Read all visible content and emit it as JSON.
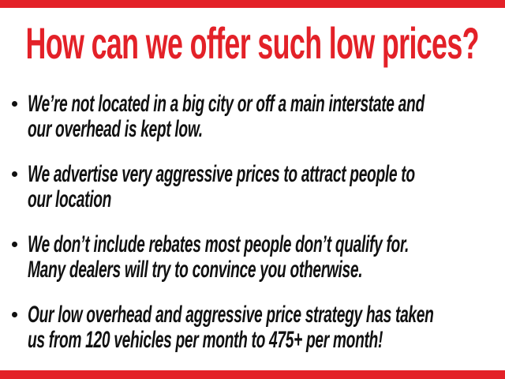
{
  "colors": {
    "accent": "#e32128",
    "text": "#111111",
    "background": "#ffffff"
  },
  "title": "How can we offer such low prices?",
  "icons": {
    "bullet_marker": "filled-circle"
  },
  "bullets": [
    {
      "lines": [
        "We’re not located in a big city or off a main interstate and",
        "our overhead is kept low."
      ]
    },
    {
      "lines": [
        "We advertise very aggressive prices to attract people to",
        "our location"
      ]
    },
    {
      "lines": [
        "We don’t include rebates most people don’t qualify for.",
        "Many dealers will try to convince you otherwise."
      ]
    },
    {
      "lines": [
        "Our low overhead and aggressive price strategy has taken",
        "us from 120 vehicles per month to 475+ per month!"
      ]
    }
  ]
}
